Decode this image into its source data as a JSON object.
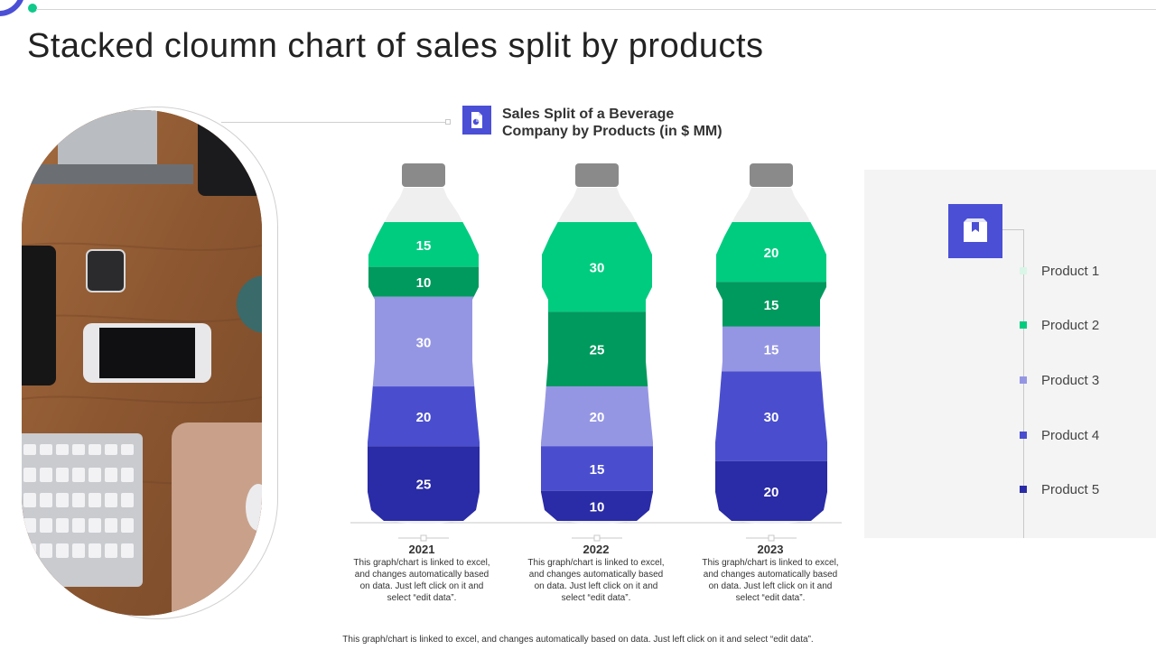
{
  "title": "Stacked cloumn chart of sales split by products",
  "chart_data": {
    "type": "bar",
    "stacked": true,
    "title": "Sales Split of a Beverage Company by Products (in $ MM)",
    "title_lines": [
      "Sales Split of a Beverage",
      "Company by Products (in $ MM)"
    ],
    "categories": [
      "2021",
      "2022",
      "2023"
    ],
    "series": [
      {
        "name": "Product 1",
        "color": "#00cc80",
        "values": [
          15,
          30,
          20
        ]
      },
      {
        "name": "Product 2",
        "color": "#009a5e",
        "values": [
          10,
          25,
          15
        ]
      },
      {
        "name": "Product 3",
        "color": "#9596e3",
        "values": [
          30,
          20,
          15
        ]
      },
      {
        "name": "Product 4",
        "color": "#4a4ece",
        "values": [
          20,
          15,
          30
        ]
      },
      {
        "name": "Product 5",
        "color": "#2a2ba6",
        "values": [
          25,
          10,
          20
        ]
      }
    ],
    "legend_position": "right",
    "bar_shape": "bottle"
  },
  "year_notes": [
    "This graph/chart is linked to excel, and changes automatically based on data. Just left click on it and select “edit data”.",
    "This graph/chart is linked to excel, and changes automatically based on data. Just left click on it and select “edit data”.",
    "This graph/chart is linked to excel, and changes automatically based on data. Just left click on it and select “edit data”."
  ],
  "footer_note": "This graph/chart is linked to excel, and changes automatically based on data. Just left click on it and select “edit data”.",
  "icons": {
    "chart_icon": "document-chart-icon",
    "legend_icon": "package-box-icon"
  },
  "colors": {
    "accent": "#4b4fd6",
    "bottle_empty": "#efefef",
    "cap": "#8a8a8a"
  }
}
